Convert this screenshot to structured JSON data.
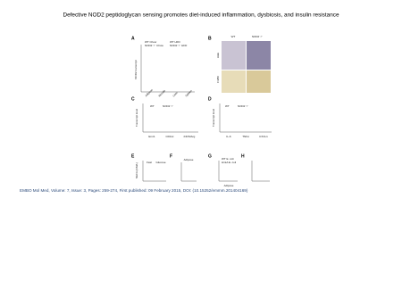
{
  "header": {
    "title": "Defective NOD2 peptidoglycan sensing promotes diet-induced inflammation, dysbiosis, and insulin resistance"
  },
  "figure": {
    "panels": [
      {
        "label": "A",
        "texts": [
          "NOD2 transcript",
          "WT Chow",
          "WT HFD",
          "NOD2⁻/⁻ Chow",
          "NOD2⁻/⁻ HFD",
          "Adipose",
          "Muscle",
          "Liver",
          "Spleen"
        ]
      },
      {
        "label": "B",
        "texts": [
          "WT",
          "NOD2⁻/⁻",
          "H&E",
          "F4/80"
        ]
      },
      {
        "label": "C",
        "texts": [
          "Transcript level",
          "WT",
          "NOD2⁻/⁻",
          "Emr1",
          "CD11c",
          "iNOS/Arg"
        ]
      },
      {
        "label": "D",
        "texts": [
          "Transcript level",
          "WT",
          "NOD2⁻/⁻",
          "IL-6",
          "TNFα",
          "CXCL1"
        ]
      },
      {
        "label": "E",
        "texts": [
          "NEFA (mM/L)",
          "Fast",
          "Glucose"
        ]
      },
      {
        "label": "F",
        "texts": [
          "Adipose"
        ]
      },
      {
        "label": "G",
        "texts": [
          "WT E. coli",
          "ΔmtA E. coli",
          "Adipose"
        ]
      },
      {
        "label": "H",
        "texts": []
      }
    ]
  },
  "caption": "EMBO Mol Med, Volume: 7, Issue: 3, Pages: 259-274, First published: 09 February 2015, DOI: (10.15252/emmm.201404169)"
}
